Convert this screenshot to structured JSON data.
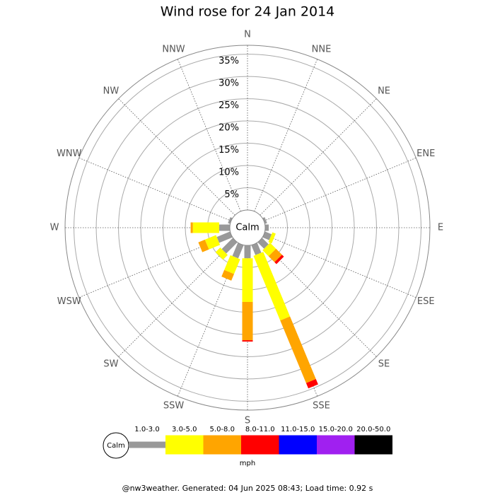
{
  "chart_data": {
    "type": "wind_rose",
    "title": "Wind rose for 24 Jan 2014",
    "categories": [
      "N",
      "NNE",
      "NE",
      "ENE",
      "E",
      "ESE",
      "SE",
      "SSE",
      "S",
      "SSW",
      "SW",
      "WSW",
      "W",
      "WNW",
      "NW",
      "NNW"
    ],
    "calm_label": "Calm",
    "unit": "mph",
    "rlim": [
      0,
      37
    ],
    "rticks": [
      {
        "value": 5,
        "label": "5%"
      },
      {
        "value": 10,
        "label": "10%"
      },
      {
        "value": 15,
        "label": "15%"
      },
      {
        "value": 20,
        "label": "20%"
      },
      {
        "value": 25,
        "label": "25%"
      },
      {
        "value": 30,
        "label": "30%"
      },
      {
        "value": 35,
        "label": "35%"
      }
    ],
    "series": [
      {
        "name": "1.0-3.0",
        "color": "#999999",
        "values": [
          0,
          0,
          0,
          0.5,
          0.8,
          1.6,
          2,
          2.4,
          2.9,
          3.2,
          3.5,
          3.2,
          2.4,
          0.5,
          0,
          0
        ]
      },
      {
        "name": "3.0-5.0",
        "color": "#ffff00",
        "values": [
          0,
          0,
          0,
          0,
          0,
          0.8,
          1.9,
          15.7,
          9.8,
          3.6,
          1.5,
          2.7,
          5.9,
          0,
          0,
          0
        ]
      },
      {
        "name": "5.0-8.0",
        "color": "#ffa500",
        "values": [
          0,
          0,
          0,
          0,
          0,
          0,
          1.9,
          15.2,
          8.6,
          1.6,
          0,
          1.6,
          0.5,
          0,
          0,
          0
        ]
      },
      {
        "name": "8.0-11.0",
        "color": "#ff0000",
        "values": [
          0,
          0,
          0,
          0,
          0,
          0,
          0.6,
          1.3,
          0.3,
          0,
          0,
          0,
          0,
          0,
          0,
          0
        ]
      },
      {
        "name": "11.0-15.0",
        "color": "#0000ff",
        "values": [
          0,
          0,
          0,
          0,
          0,
          0,
          0,
          0,
          0,
          0,
          0,
          0,
          0,
          0,
          0,
          0
        ]
      },
      {
        "name": "15.0-20.0",
        "color": "#a020f0",
        "values": [
          0,
          0,
          0,
          0,
          0,
          0,
          0,
          0,
          0,
          0,
          0,
          0,
          0,
          0,
          0,
          0
        ]
      },
      {
        "name": "20.0-50.0",
        "color": "#000000",
        "values": [
          0,
          0,
          0,
          0,
          0,
          0,
          0,
          0,
          0,
          0,
          0,
          0,
          0,
          0,
          0,
          0
        ]
      }
    ]
  },
  "footer": "@nw3weather. Generated: 04 Jun 2025 08:43; Load time: 0.92 s"
}
